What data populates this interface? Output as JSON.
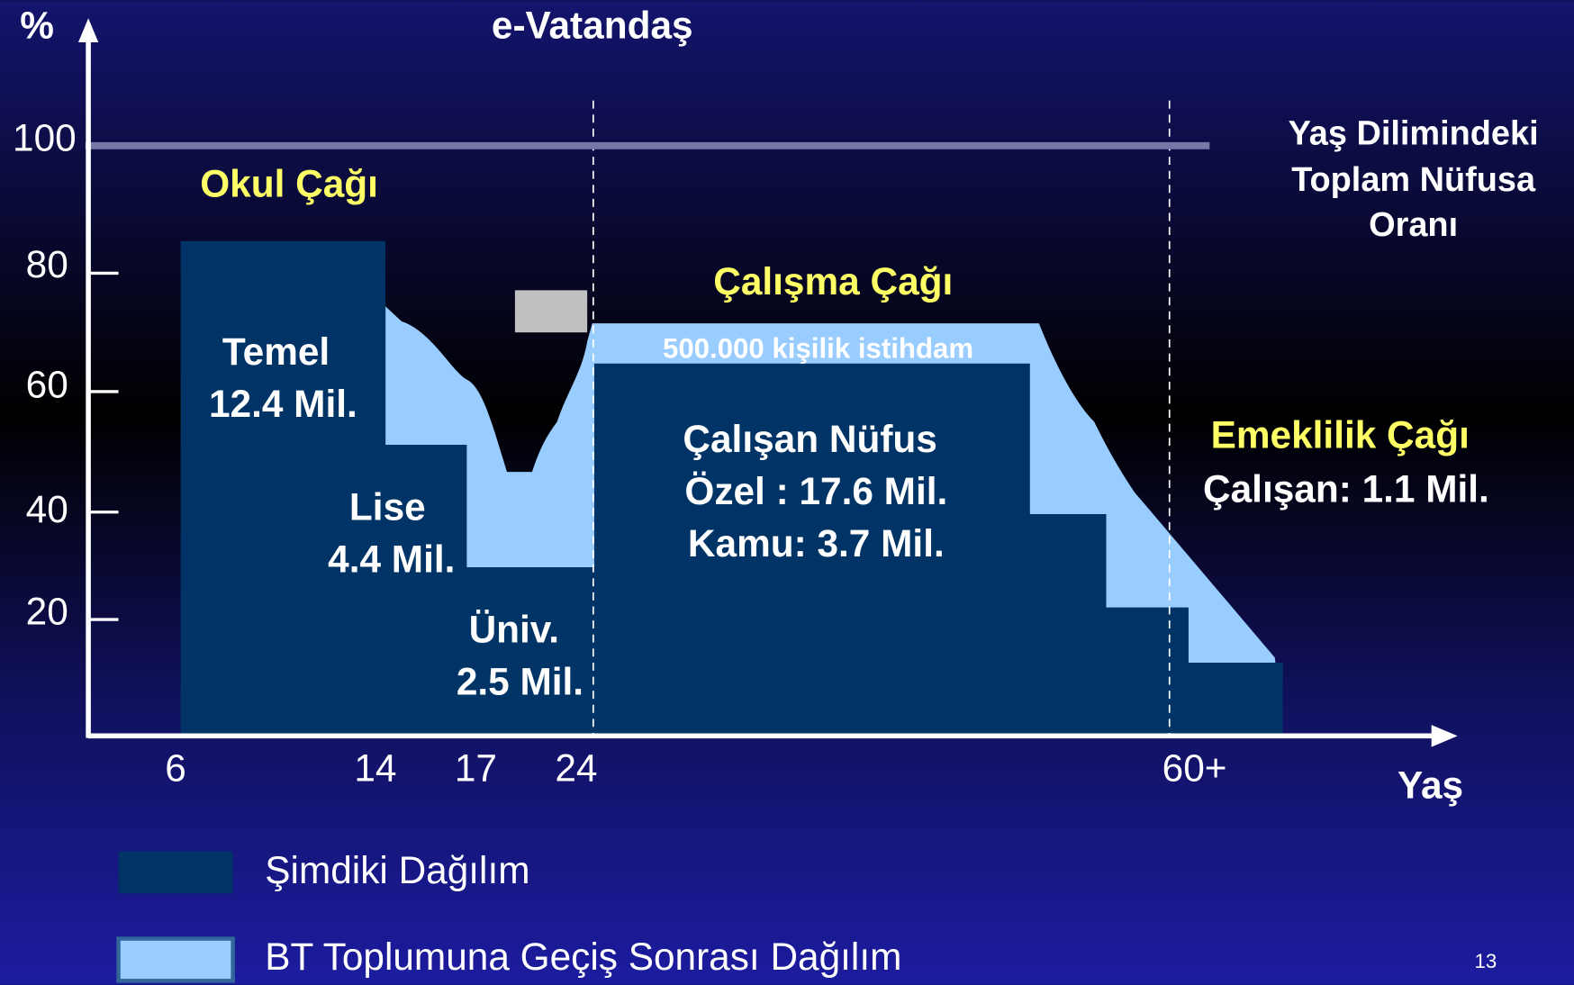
{
  "title": "e-Vatandaş",
  "y_axis": {
    "label": "%",
    "ticks": [
      "100",
      "80",
      "60",
      "40",
      "20"
    ]
  },
  "x_axis": {
    "label": "Yaş",
    "ticks": [
      "6",
      "14",
      "17",
      "24",
      "60+"
    ]
  },
  "reference_label": [
    "Yaş Dilimindeki",
    "Toplam Nüfusa",
    "Oranı"
  ],
  "sections": {
    "school": "Okul Çağı",
    "work": "Çalışma Çağı",
    "retirement": "Emeklilik Çağı"
  },
  "groups": {
    "temel": [
      "Temel",
      "12.4 Mil."
    ],
    "lise": [
      "Lise",
      "4.4 Mil."
    ],
    "univ": [
      "Üniv.",
      "2.5 Mil."
    ],
    "calisan": [
      "Çalışan Nüfus",
      "Özel : 17.6 Mil.",
      "Kamu: 3.7 Mil."
    ],
    "istihdam": "500.000 kişilik istihdam",
    "emekli": "Çalışan: 1.1 Mil."
  },
  "legend": [
    "Şimdiki Dağılım",
    "BT Toplumuna Geçiş Sonrası Dağılım"
  ],
  "page_number": "13"
}
